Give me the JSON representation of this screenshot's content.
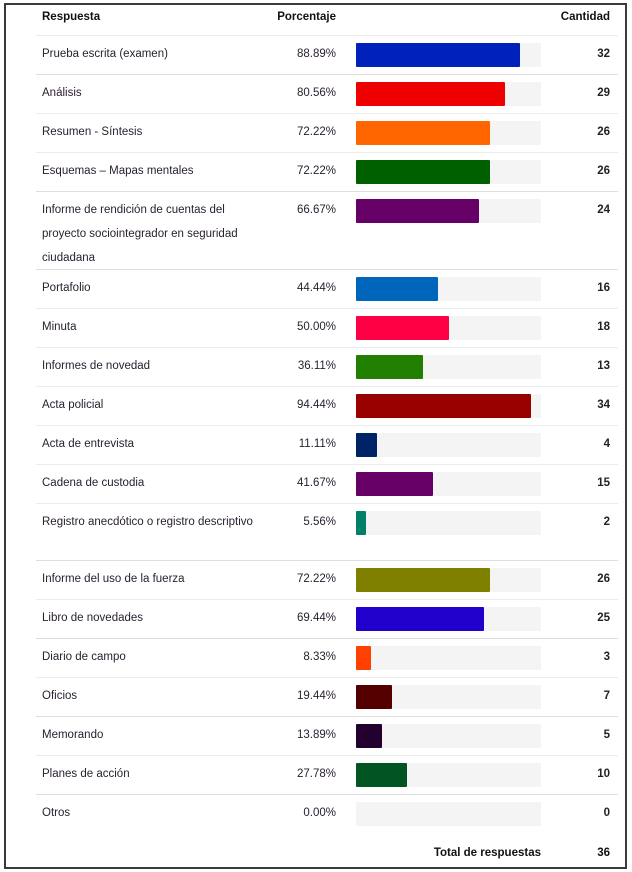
{
  "header": {
    "respuesta": "Respuesta",
    "porcentaje": "Porcentaje",
    "cantidad": "Cantidad"
  },
  "rows": [
    {
      "label": "Prueba escrita (examen)",
      "pct": "88.89%",
      "count": "32",
      "color": "#0022bb",
      "value": 88.89,
      "height": 38
    },
    {
      "label": "Análisis",
      "pct": "80.56%",
      "count": "29",
      "color": "#ee0000",
      "value": 80.56,
      "height": 38
    },
    {
      "label": "Resumen - Síntesis",
      "pct": "72.22%",
      "count": "26",
      "color": "#ff6600",
      "value": 72.22,
      "height": 38
    },
    {
      "label": "Esquemas – Mapas mentales",
      "pct": "72.22%",
      "count": "26",
      "color": "#006000",
      "value": 72.22,
      "height": 38
    },
    {
      "label": "Informe de rendición de cuentas del proyecto sociointegrador en seguridad ciudadana",
      "pct": "66.67%",
      "count": "24",
      "color": "#660066",
      "value": 66.67,
      "height": 77
    },
    {
      "label": "Portafolio",
      "pct": "44.44%",
      "count": "16",
      "color": "#0066bb",
      "value": 44.44,
      "height": 38
    },
    {
      "label": "Minuta",
      "pct": "50.00%",
      "count": "18",
      "color": "#ff0044",
      "value": 50.0,
      "height": 38
    },
    {
      "label": "Informes de novedad",
      "pct": "36.11%",
      "count": "13",
      "color": "#228000",
      "value": 36.11,
      "height": 38
    },
    {
      "label": "Acta policial",
      "pct": "94.44%",
      "count": "34",
      "color": "#990000",
      "value": 94.44,
      "height": 38
    },
    {
      "label": "Acta de entrevista",
      "pct": "11.11%",
      "count": "4",
      "color": "#002266",
      "value": 11.11,
      "height": 38
    },
    {
      "label": "Cadena de custodia",
      "pct": "41.67%",
      "count": "15",
      "color": "#660066",
      "value": 41.67,
      "height": 38
    },
    {
      "label": "Registro anecdótico o registro descriptivo",
      "pct": "5.56%",
      "count": "2",
      "color": "#008066",
      "value": 5.56,
      "height": 56
    },
    {
      "label": "Informe del uso de la fuerza",
      "pct": "72.22%",
      "count": "26",
      "color": "#808000",
      "value": 72.22,
      "height": 38
    },
    {
      "label": "Libro de novedades",
      "pct": "69.44%",
      "count": "25",
      "color": "#2200cc",
      "value": 69.44,
      "height": 38
    },
    {
      "label": "Diario de campo",
      "pct": "8.33%",
      "count": "3",
      "color": "#ff4000",
      "value": 8.33,
      "height": 38
    },
    {
      "label": "Oficios",
      "pct": "19.44%",
      "count": "7",
      "color": "#550000",
      "value": 19.44,
      "height": 38
    },
    {
      "label": "Memorando",
      "pct": "13.89%",
      "count": "5",
      "color": "#22002f",
      "value": 13.89,
      "height": 38
    },
    {
      "label": "Planes de acción",
      "pct": "27.78%",
      "count": "10",
      "color": "#005522",
      "value": 27.78,
      "height": 38
    },
    {
      "label": "Otros",
      "pct": "0.00%",
      "count": "0",
      "color": "#cccccc",
      "value": 0.0,
      "height": 38
    }
  ],
  "total": {
    "label": "Total de respuestas",
    "value": "36"
  },
  "chart_data": {
    "type": "bar",
    "orientation": "horizontal",
    "title": "",
    "xlabel": "Porcentaje",
    "ylabel": "Respuesta",
    "xlim": [
      0,
      100
    ],
    "grid": false,
    "legend": "none",
    "categories": [
      "Prueba escrita (examen)",
      "Análisis",
      "Resumen - Síntesis",
      "Esquemas – Mapas mentales",
      "Informe de rendición de cuentas del proyecto sociointegrador en seguridad ciudadana",
      "Portafolio",
      "Minuta",
      "Informes de novedad",
      "Acta policial",
      "Acta de entrevista",
      "Cadena de custodia",
      "Registro anecdótico o registro descriptivo",
      "Informe del uso de la fuerza",
      "Libro de novedades",
      "Diario de campo",
      "Oficios",
      "Memorando",
      "Planes de acción",
      "Otros"
    ],
    "series": [
      {
        "name": "Porcentaje",
        "values": [
          88.89,
          80.56,
          72.22,
          72.22,
          66.67,
          44.44,
          50.0,
          36.11,
          94.44,
          11.11,
          41.67,
          5.56,
          72.22,
          69.44,
          8.33,
          19.44,
          13.89,
          27.78,
          0.0
        ]
      },
      {
        "name": "Cantidad",
        "values": [
          32,
          29,
          26,
          26,
          24,
          16,
          18,
          13,
          34,
          4,
          15,
          2,
          26,
          25,
          3,
          7,
          5,
          10,
          0
        ]
      }
    ],
    "total_respuestas": 36
  }
}
